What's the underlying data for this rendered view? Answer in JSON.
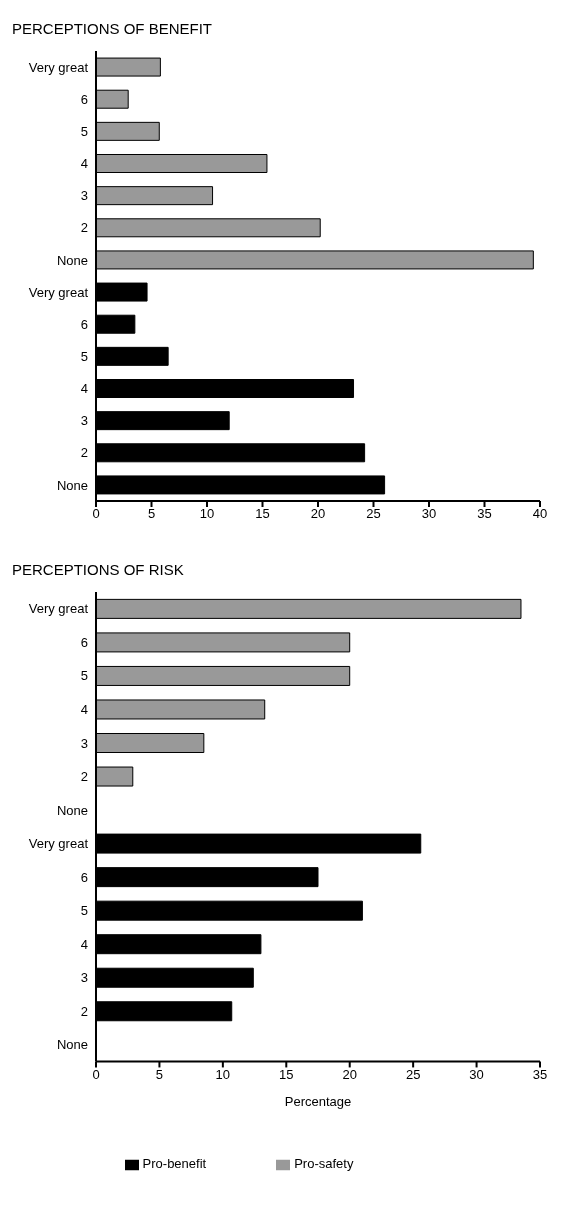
{
  "chart_data": [
    {
      "type": "bar",
      "orientation": "horizontal",
      "title": "PERCEPTIONS OF BENEFIT",
      "categories": [
        "Very great",
        "6",
        "5",
        "4",
        "3",
        "2",
        "None",
        "Very great",
        "6",
        "5",
        "4",
        "3",
        "2",
        "None"
      ],
      "xlim": [
        0,
        40
      ],
      "xticks": [
        0,
        5,
        10,
        15,
        20,
        25,
        30,
        35,
        40
      ],
      "grid": false,
      "legend": false,
      "series": [
        {
          "color": "#999999",
          "values": [
            5.8,
            2.9,
            5.7,
            15.4,
            10.5,
            20.2,
            39.4,
            null,
            null,
            null,
            null,
            null,
            null,
            null
          ]
        },
        {
          "color": "#000000",
          "values": [
            null,
            null,
            null,
            null,
            null,
            null,
            null,
            4.6,
            3.5,
            6.5,
            23.2,
            12.0,
            24.2,
            26.0
          ]
        }
      ]
    },
    {
      "type": "bar",
      "orientation": "horizontal",
      "title": "PERCEPTIONS OF RISK",
      "xlabel": "Percentage",
      "categories": [
        "Very great",
        "6",
        "5",
        "4",
        "3",
        "2",
        "None",
        "Very great",
        "6",
        "5",
        "4",
        "3",
        "2",
        "None"
      ],
      "xlim": [
        0,
        35
      ],
      "xticks": [
        0,
        5,
        10,
        15,
        20,
        25,
        30,
        35
      ],
      "grid": false,
      "legend": "bottom",
      "series": [
        {
          "name": "Pro-safety",
          "color": "#999999",
          "values": [
            33.5,
            20.0,
            20.0,
            13.3,
            8.5,
            2.9,
            null,
            null,
            null,
            null,
            null,
            null,
            null,
            null
          ]
        },
        {
          "name": "Pro-benefit",
          "color": "#000000",
          "values": [
            null,
            null,
            null,
            null,
            null,
            null,
            null,
            25.6,
            17.5,
            21.0,
            13.0,
            12.4,
            10.7,
            null
          ]
        }
      ]
    }
  ]
}
